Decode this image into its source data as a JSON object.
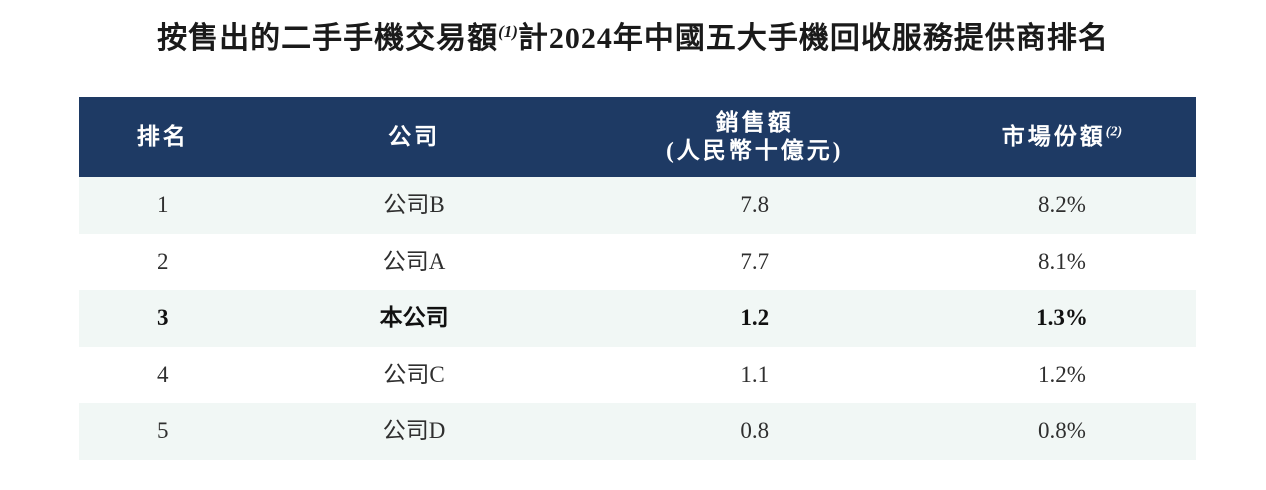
{
  "title": {
    "part1": "按售出的二手手機交易額",
    "footnote_sup": "(1)",
    "part2": "計2024年中國五大手機回收服務提供商排名"
  },
  "table": {
    "columns": {
      "rank": "排名",
      "company": "公司",
      "sales_line1": "銷售額",
      "sales_line2": "(人民幣十億元)",
      "share": "市場份額",
      "share_sup": "(2)"
    },
    "rows": [
      {
        "rank": "1",
        "company": "公司B",
        "sales": "7.8",
        "share": "8.2%"
      },
      {
        "rank": "2",
        "company": "公司A",
        "sales": "7.7",
        "share": "8.1%"
      },
      {
        "rank": "3",
        "company": "本公司",
        "sales": "1.2",
        "share": "1.3%"
      },
      {
        "rank": "4",
        "company": "公司C",
        "sales": "1.1",
        "share": "1.2%"
      },
      {
        "rank": "5",
        "company": "公司D",
        "sales": "0.8",
        "share": "0.8%"
      }
    ],
    "colors": {
      "header_bg": "#1e3a64",
      "header_text": "#ffffff",
      "row_alt_bg": "#f1f7f5",
      "row_bg": "#ffffff",
      "body_text": "#2f2f2f"
    }
  }
}
